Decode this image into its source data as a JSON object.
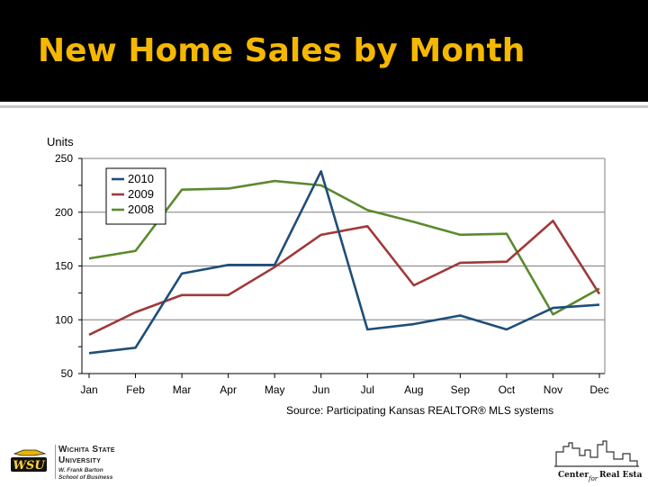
{
  "slide": {
    "title": "New Home Sales by Month",
    "source": "Source: Participating Kansas REALTOR® MLS systems"
  },
  "footer": {
    "university_lines": [
      "Wichita State",
      "University",
      "W. Frank Barton",
      "School of Business"
    ],
    "logo_text": "WSU",
    "center_logo_text": [
      "Center",
      "for",
      "Real Estate"
    ]
  },
  "colors": {
    "title": "#f5b800",
    "band": "#000000",
    "series_2010": "#1f4e79",
    "series_2009": "#a0393a",
    "series_2008": "#5b8a2e"
  },
  "chart_data": {
    "type": "line",
    "title": "",
    "ylabel": "Units",
    "xlabel": "",
    "categories": [
      "Jan",
      "Feb",
      "Mar",
      "Apr",
      "May",
      "Jun",
      "Jul",
      "Aug",
      "Sep",
      "Oct",
      "Nov",
      "Dec"
    ],
    "ylim": [
      50,
      250
    ],
    "yticks": [
      50,
      100,
      150,
      200,
      250
    ],
    "grid": true,
    "legend_position": "top-left",
    "series": [
      {
        "name": "2010",
        "color": "#1f4e79",
        "values": [
          69,
          74,
          143,
          151,
          151,
          238,
          91,
          96,
          104,
          91,
          111,
          114
        ]
      },
      {
        "name": "2009",
        "color": "#a0393a",
        "values": [
          86,
          107,
          123,
          123,
          149,
          179,
          187,
          132,
          153,
          154,
          192,
          124
        ]
      },
      {
        "name": "2008",
        "color": "#5b8a2e",
        "values": [
          157,
          164,
          221,
          222,
          229,
          225,
          202,
          191,
          179,
          180,
          105,
          129
        ]
      }
    ]
  }
}
